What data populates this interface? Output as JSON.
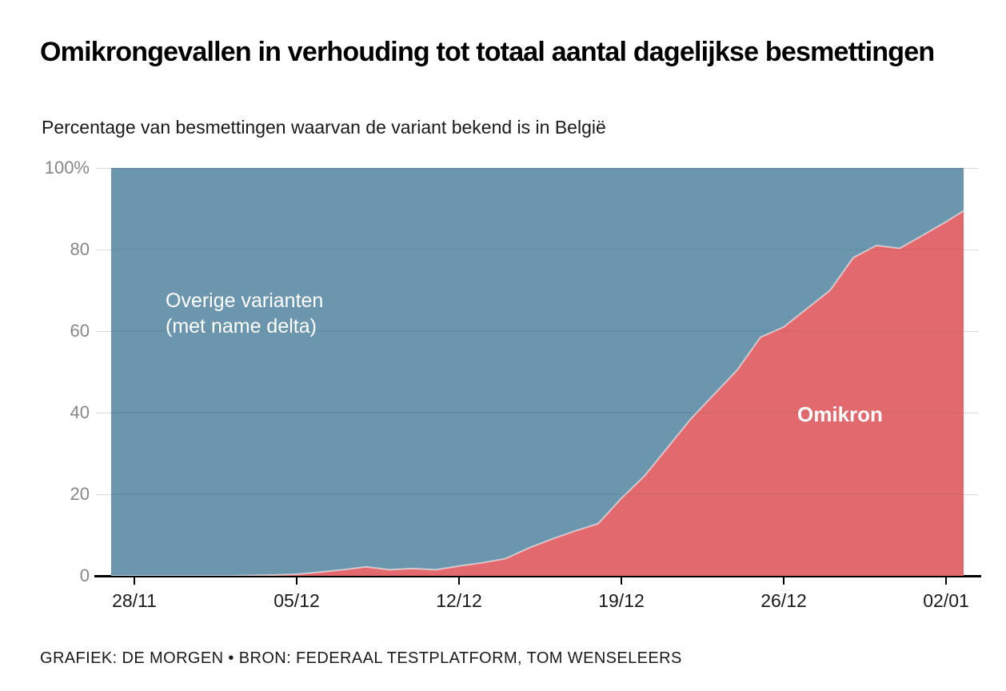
{
  "header": {
    "title": "Omikrongevallen in verhouding tot totaal aantal dagelijkse besmettingen",
    "subtitle": "Percentage van besmettingen waarvan de variant bekend is in België"
  },
  "footer": {
    "credit": "GRAFIEK: DE MORGEN • BRON: FEDERAAL TESTPLATFORM, TOM WENSELEERS"
  },
  "colors": {
    "omikron_area": "#e26a6e",
    "other_variants_area": "#6b96ad",
    "gridline": "#d9d9d9",
    "axis": "#000000",
    "y_tick_label": "#878787",
    "x_tick_label": "#1a1a1a",
    "inner_area_labels": "#ffffff"
  },
  "chart_data": {
    "type": "area",
    "subtype": "100-percent-stacked",
    "title": "Omikrongevallen in verhouding tot totaal aantal dagelijkse besmettingen",
    "subtitle": "Percentage van besmettingen waarvan de variant bekend is in België",
    "xlabel": "",
    "ylabel": "",
    "ylim": [
      0,
      100
    ],
    "grid": "horizontal",
    "legend_position": "labels-inside-areas",
    "x": [
      "27/11",
      "28/11",
      "29/11",
      "30/11",
      "01/12",
      "02/12",
      "03/12",
      "04/12",
      "05/12",
      "06/12",
      "07/12",
      "08/12",
      "09/12",
      "10/12",
      "11/12",
      "12/12",
      "13/12",
      "14/12",
      "15/12",
      "16/12",
      "17/12",
      "18/12",
      "19/12",
      "20/12",
      "21/12",
      "22/12",
      "23/12",
      "24/12",
      "25/12",
      "26/12",
      "27/12",
      "28/12",
      "29/12",
      "30/12",
      "31/12",
      "01/01",
      "02/01",
      "03/01"
    ],
    "series": [
      {
        "name": "Omikron",
        "color": "#e26a6e",
        "values": [
          0,
          0,
          0,
          0,
          0,
          0,
          0.1,
          0.2,
          0.4,
          0.9,
          1.5,
          2.2,
          1.5,
          1.8,
          1.5,
          2.4,
          3.2,
          4.2,
          6.8,
          9.0,
          11.0,
          12.8,
          19.0,
          24.5,
          31.5,
          38.5,
          44.5,
          50.5,
          58.5,
          61.0,
          65.5,
          70.0,
          78.0,
          81.0,
          80.3,
          83.5,
          86.8,
          89.5
        ]
      },
      {
        "name": "Overige varianten (met name delta)",
        "color": "#6b96ad",
        "values": [
          100,
          100,
          100,
          100,
          100,
          100,
          99.9,
          99.8,
          99.6,
          99.1,
          98.5,
          97.8,
          98.5,
          98.2,
          98.5,
          97.6,
          96.8,
          95.8,
          93.2,
          91.0,
          89.0,
          87.2,
          81.0,
          75.5,
          68.5,
          61.5,
          55.5,
          49.5,
          41.5,
          39.0,
          34.5,
          30.0,
          22.0,
          19.0,
          19.7,
          16.5,
          13.2,
          10.5
        ]
      }
    ],
    "y_ticks": [
      {
        "label": "100%",
        "value": 100
      },
      {
        "label": "80",
        "value": 80
      },
      {
        "label": "60",
        "value": 60
      },
      {
        "label": "40",
        "value": 40
      },
      {
        "label": "20",
        "value": 20
      },
      {
        "label": "0",
        "value": 0
      }
    ],
    "x_ticks": [
      {
        "label": "28/11",
        "day_index": 1
      },
      {
        "label": "05/12",
        "day_index": 8
      },
      {
        "label": "12/12",
        "day_index": 15
      },
      {
        "label": "19/12",
        "day_index": 22
      },
      {
        "label": "26/12",
        "day_index": 29
      },
      {
        "label": "02/01",
        "day_index": 36
      }
    ],
    "annotations": {
      "other_variants_label_line1": "Overige varianten",
      "other_variants_label_line2": "(met name delta)",
      "omikron_label": "Omikron"
    }
  }
}
